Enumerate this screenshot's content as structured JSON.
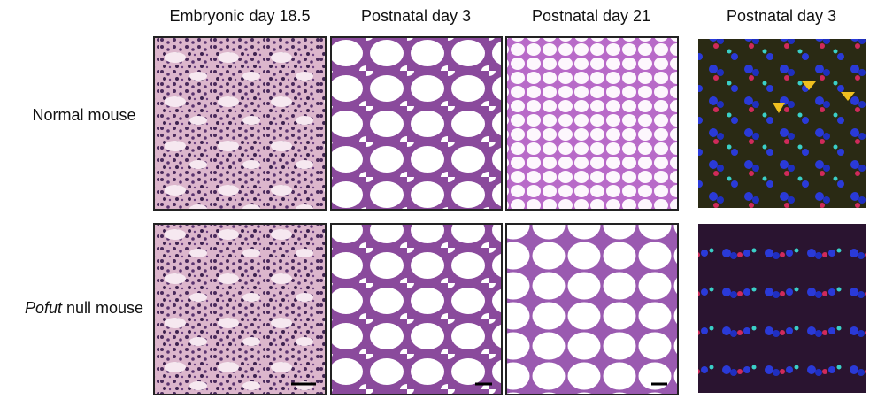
{
  "column_headers": [
    "Embryonic day 18.5",
    "Postnatal day 3",
    "Postnatal day 21",
    "Postnatal day 3"
  ],
  "row_labels": [
    {
      "text": "Normal mouse"
    },
    {
      "italic": "Pofut",
      "text": " null mouse"
    }
  ]
}
